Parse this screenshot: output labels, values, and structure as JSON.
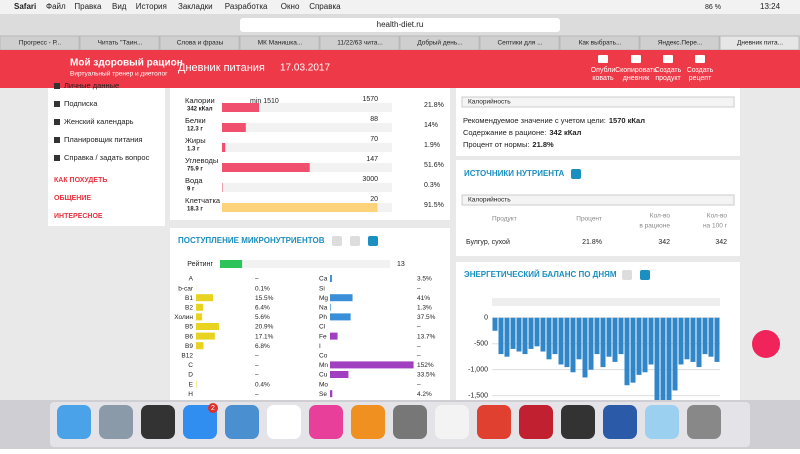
{
  "menubar": {
    "app": "Safari",
    "items": [
      "Файл",
      "Правка",
      "Вид",
      "История",
      "Закладки",
      "Разработка",
      "Окно",
      "Справка"
    ],
    "battery": "86 %",
    "time": "13:24"
  },
  "address": "health-diet.ru",
  "tabs": [
    "Прогресс - Р...",
    "Читать \"Таин...",
    "Слова и фразы",
    "МК Манишка...",
    "11/22/63 чита...",
    "Добрый день...",
    "Септики для ...",
    "Как выбрать...",
    "Яндекс.Пере...",
    "Дневник пита..."
  ],
  "header": {
    "logo": "Мой здоровый рацион",
    "tagline": "Виртуальный тренер и диетолог",
    "title": "Дневник питания",
    "date": "17.03.2017",
    "actions": [
      [
        "Опубли",
        "ковать"
      ],
      [
        "Скопировать",
        "дневник"
      ],
      [
        "Создать",
        "продукт"
      ],
      [
        "Создать",
        "рецепт"
      ]
    ]
  },
  "sidebar": {
    "items": [
      "Личные данные",
      "Подписка",
      "Женский календарь",
      "Планировщик питания",
      "Справка / задать вопрос"
    ],
    "sections": [
      "КАК ПОХУДЕТЬ",
      "ОБЩЕНИЕ",
      "ИНТЕРЕСНОЕ"
    ]
  },
  "nutrients": {
    "min_label": "min 1510",
    "rows": [
      {
        "name": "Калории",
        "amount": "342 кКал",
        "norm": 1570,
        "percent": 21.8,
        "percent_label": "21.8%",
        "color": "#f0506e"
      },
      {
        "name": "Белки",
        "amount": "12.3 г",
        "norm": 88,
        "percent": 14,
        "percent_label": "14%",
        "color": "#f0506e"
      },
      {
        "name": "Жиры",
        "amount": "1.3 г",
        "norm": 70,
        "percent": 1.9,
        "percent_label": "1.9%",
        "color": "#f0506e"
      },
      {
        "name": "Углеводы",
        "amount": "75.9 г",
        "norm": 147,
        "percent": 51.6,
        "percent_label": "51.6%",
        "color": "#f0506e"
      },
      {
        "name": "Вода",
        "amount": "9 г",
        "norm": 3000,
        "percent": 0.3,
        "percent_label": "0.3%",
        "color": "#f0506e"
      },
      {
        "name": "Клетчатка",
        "amount": "18.3 г",
        "norm": 20,
        "percent": 91.5,
        "percent_label": "91.5%",
        "color": "#fcd27a"
      }
    ]
  },
  "micro": {
    "title": "ПОСТУПЛЕНИЕ МИКРОНУТРИЕНТОВ",
    "rating_label": "Рейтинг",
    "rating": 13,
    "left": [
      {
        "name": "A",
        "value": null,
        "label": "–"
      },
      {
        "name": "b-car",
        "value": 0.1,
        "label": "0.1%"
      },
      {
        "name": "B1",
        "value": 15.5,
        "label": "15.5%"
      },
      {
        "name": "B2",
        "value": 6.4,
        "label": "6.4%"
      },
      {
        "name": "Холин",
        "value": 5.6,
        "label": "5.6%"
      },
      {
        "name": "B5",
        "value": 20.9,
        "label": "20.9%"
      },
      {
        "name": "B6",
        "value": 17.1,
        "label": "17.1%"
      },
      {
        "name": "B9",
        "value": 6.8,
        "label": "6.8%"
      },
      {
        "name": "B12",
        "value": null,
        "label": "–"
      },
      {
        "name": "C",
        "value": null,
        "label": "–"
      },
      {
        "name": "D",
        "value": null,
        "label": "–"
      },
      {
        "name": "E",
        "value": 0.4,
        "label": "0.4%"
      },
      {
        "name": "H",
        "value": null,
        "label": "–"
      }
    ],
    "left_color": "#e8d420",
    "right": [
      {
        "name": "Ca",
        "value": 3.5,
        "label": "3.5%",
        "color": "#3a8fd8"
      },
      {
        "name": "Si",
        "value": null,
        "label": "–",
        "color": "#3a8fd8"
      },
      {
        "name": "Mg",
        "value": 41,
        "label": "41%",
        "color": "#3a8fd8"
      },
      {
        "name": "Na",
        "value": 1.3,
        "label": "1.3%",
        "color": "#3a8fd8"
      },
      {
        "name": "Ph",
        "value": 37.5,
        "label": "37.5%",
        "color": "#3a8fd8"
      },
      {
        "name": "Cl",
        "value": null,
        "label": "–",
        "color": "#3a8fd8"
      },
      {
        "name": "Fe",
        "value": 13.7,
        "label": "13.7%",
        "color": "#a040c0"
      },
      {
        "name": "I",
        "value": null,
        "label": "–",
        "color": "#a040c0"
      },
      {
        "name": "Co",
        "value": null,
        "label": "–",
        "color": "#a040c0"
      },
      {
        "name": "Mn",
        "value": 152,
        "label": "152%",
        "color": "#a040c0"
      },
      {
        "name": "Cu",
        "value": 33.5,
        "label": "33.5%",
        "color": "#a040c0"
      },
      {
        "name": "Mo",
        "value": null,
        "label": "–",
        "color": "#a040c0"
      },
      {
        "name": "Se",
        "value": 4.2,
        "label": "4.2%",
        "color": "#a040c0"
      }
    ]
  },
  "summary": {
    "select": "Калорийность",
    "lines": [
      {
        "label": "Рекомендуемое значение с учетом цели:",
        "value": "1570 кКал"
      },
      {
        "label": "Содержание в рационе:",
        "value": "342 кКал"
      },
      {
        "label": "Процент от нормы:",
        "value": "21.8%"
      }
    ]
  },
  "sources": {
    "title": "ИСТОЧНИКИ НУТРИЕНТА",
    "select": "Калорийность",
    "columns": [
      "Продукт",
      "Процент",
      [
        "Кол-во",
        "в рационе"
      ],
      [
        "Кол-во",
        "на 100 г"
      ]
    ],
    "rows": [
      [
        "Булгур, сухой",
        "21.8%",
        "342",
        "342"
      ]
    ]
  },
  "balance": {
    "title": "ЭНЕРГЕТИЧЕСКИЙ БАЛАНС ПО ДНЯМ",
    "chart_data": {
      "type": "bar",
      "color": "#2f86c8",
      "ylim": [
        -1700,
        150
      ],
      "yticks": [
        0,
        -500,
        {
          "value": -1000,
          "label": "-1,000"
        },
        {
          "value": -1500,
          "label": "-1,500"
        }
      ],
      "grid": true,
      "values": [
        -250,
        -700,
        -750,
        -600,
        -650,
        -700,
        -600,
        -550,
        -650,
        -800,
        -700,
        -900,
        -950,
        -1050,
        -800,
        -1150,
        -1000,
        -700,
        -950,
        -750,
        -850,
        -700,
        -1300,
        -1250,
        -1100,
        -1050,
        -900,
        -1700,
        -1700,
        -1700,
        -1400,
        -900,
        -800,
        -850,
        -950,
        -700,
        -750,
        -850
      ]
    }
  },
  "dock_badge": "2"
}
